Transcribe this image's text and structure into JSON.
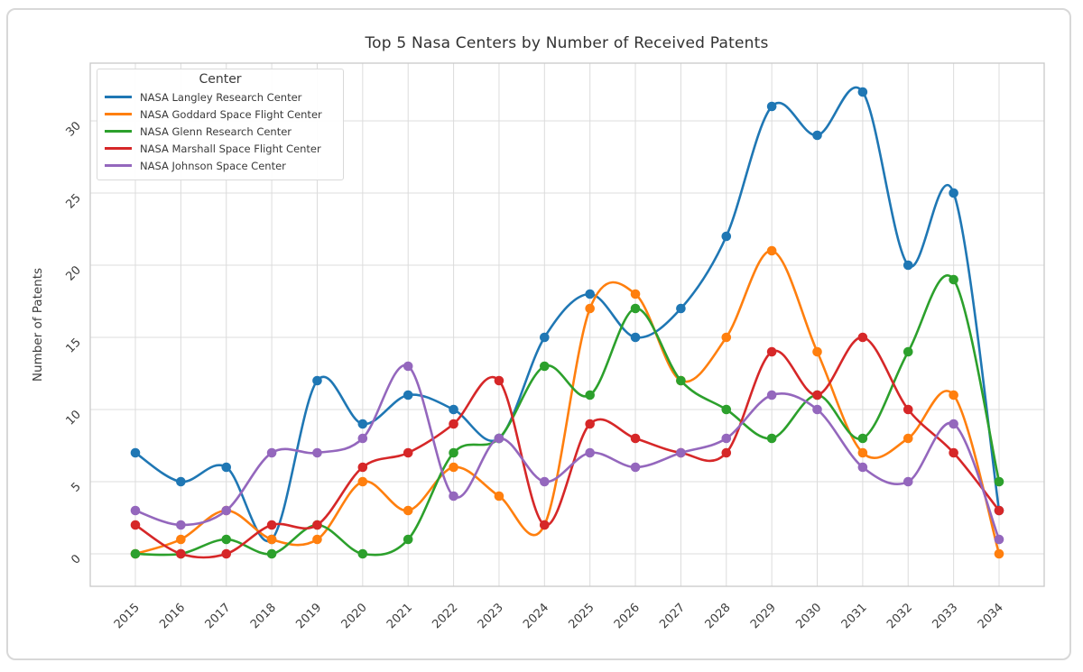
{
  "chart_data": {
    "type": "line",
    "title": "Top 5 Nasa Centers by Number of Received Patents",
    "xlabel": "",
    "ylabel": "Number of Patents",
    "legend_title": "Center",
    "legend_position": "upper left",
    "grid": true,
    "smooth": true,
    "tick_rotation": 45,
    "x": [
      2015,
      2016,
      2017,
      2018,
      2019,
      2020,
      2021,
      2022,
      2023,
      2024,
      2025,
      2026,
      2027,
      2028,
      2029,
      2030,
      2031,
      2032,
      2033,
      2034
    ],
    "yticks": [
      0,
      5,
      10,
      15,
      20,
      25,
      30
    ],
    "ylim": [
      -2.25,
      34
    ],
    "series": [
      {
        "name": "NASA Langley Research Center",
        "color": "#1f77b4",
        "values": [
          7,
          5,
          6,
          1,
          12,
          9,
          11,
          10,
          8,
          15,
          18,
          15,
          17,
          22,
          31,
          29,
          32,
          20,
          25,
          3
        ]
      },
      {
        "name": "NASA Goddard Space Flight Center",
        "color": "#ff7f0e",
        "values": [
          0,
          1,
          3,
          1,
          1,
          5,
          3,
          6,
          4,
          2,
          17,
          18,
          12,
          15,
          21,
          14,
          7,
          8,
          11,
          0
        ]
      },
      {
        "name": "NASA Glenn Research Center",
        "color": "#2ca02c",
        "values": [
          0,
          0,
          1,
          0,
          2,
          0,
          1,
          7,
          8,
          13,
          11,
          17,
          12,
          10,
          8,
          11,
          8,
          14,
          19,
          5
        ]
      },
      {
        "name": "NASA Marshall Space Flight Center",
        "color": "#d62728",
        "values": [
          2,
          0,
          0,
          2,
          2,
          6,
          7,
          9,
          12,
          2,
          9,
          8,
          7,
          7,
          14,
          11,
          15,
          10,
          7,
          3
        ]
      },
      {
        "name": "NASA Johnson Space Center",
        "color": "#9467bd",
        "values": [
          3,
          2,
          3,
          7,
          7,
          8,
          13,
          4,
          8,
          5,
          7,
          6,
          7,
          8,
          11,
          10,
          6,
          5,
          9,
          1
        ]
      }
    ]
  },
  "style": {
    "grid_color": "#dcdcdc",
    "box_color": "#c9c9c9",
    "tick_color": "#3d3d3d",
    "title_color": "#323232"
  }
}
